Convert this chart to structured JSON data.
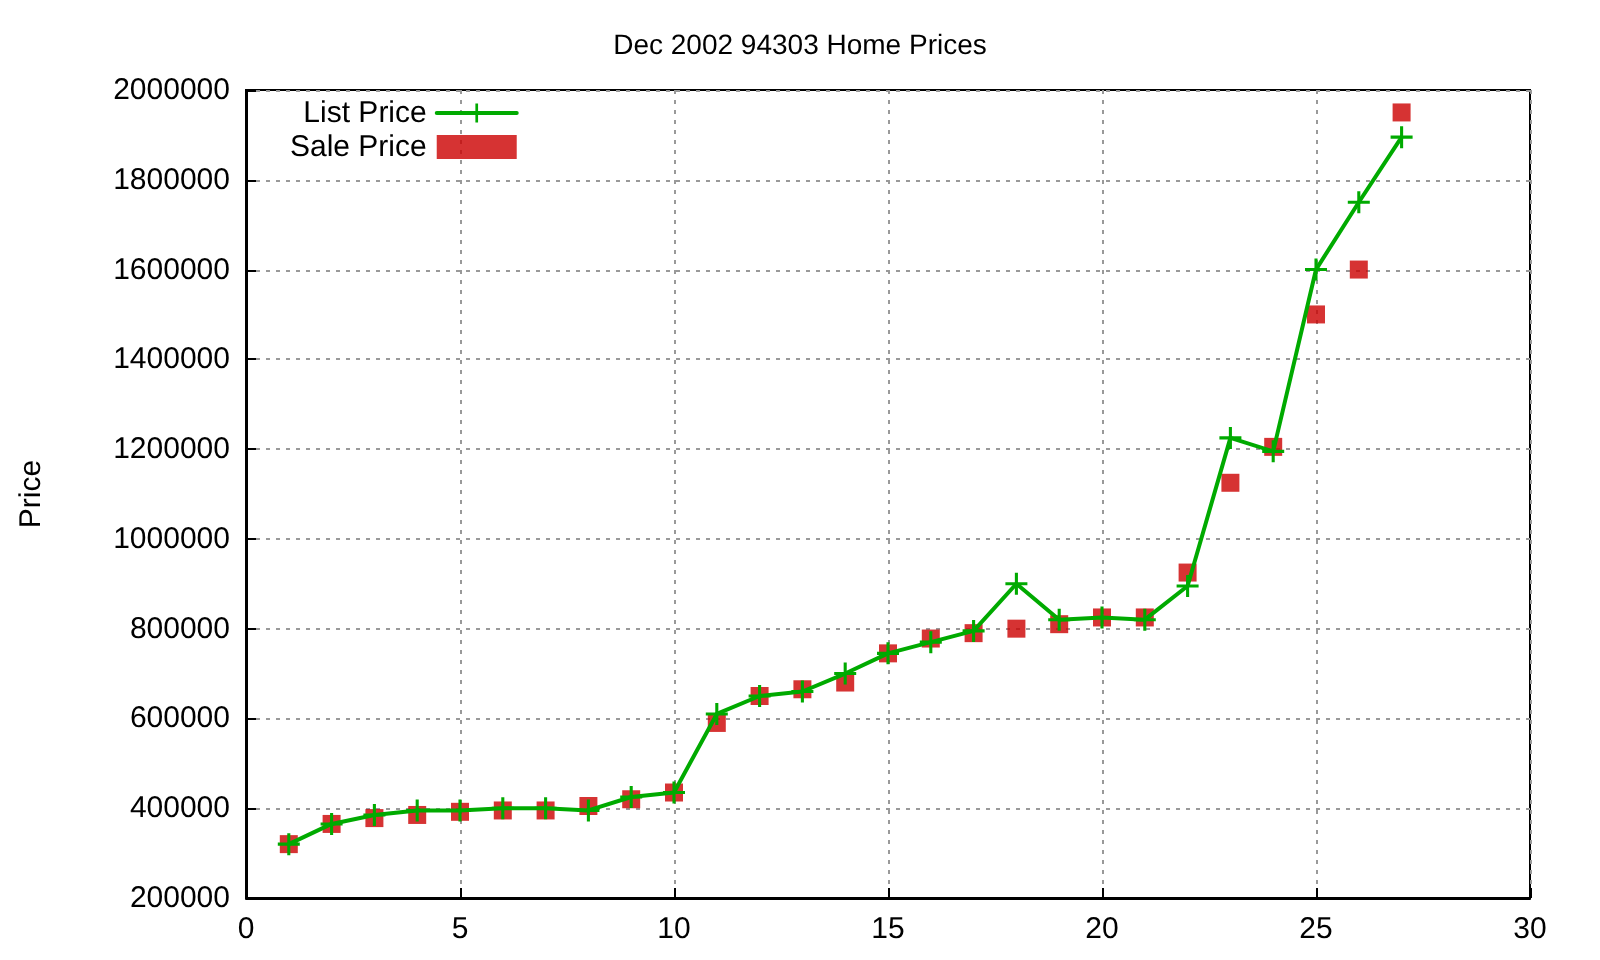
{
  "chart_data": {
    "type": "line",
    "title": "Dec 2002 94303 Home Prices",
    "ylabel": "Price",
    "x": [
      1,
      2,
      3,
      4,
      5,
      6,
      7,
      8,
      9,
      10,
      11,
      12,
      13,
      14,
      15,
      16,
      17,
      18,
      19,
      20,
      21,
      22,
      23,
      24,
      25,
      26,
      27
    ],
    "series": [
      {
        "name": "List Price",
        "marker": "cross",
        "color": "#00aa00",
        "values": [
          320000,
          365000,
          385000,
          395000,
          395000,
          400000,
          400000,
          395000,
          425000,
          435000,
          610000,
          650000,
          660000,
          700000,
          745000,
          770000,
          795000,
          900000,
          820000,
          825000,
          820000,
          895000,
          1225000,
          1195000,
          1600000,
          1750000,
          1895000
        ]
      },
      {
        "name": "Sale Price",
        "type": "scatter",
        "marker": "square",
        "color": "#cc0000",
        "values": [
          320000,
          365000,
          378000,
          385000,
          392000,
          395000,
          395000,
          405000,
          420000,
          435000,
          590000,
          650000,
          665000,
          680000,
          745000,
          778000,
          790000,
          800000,
          810000,
          825000,
          825000,
          925000,
          1125000,
          1205000,
          1500000,
          1600000,
          1950000
        ]
      }
    ],
    "xlim": [
      0,
      30
    ],
    "xticks": [
      0,
      5,
      10,
      15,
      20,
      25,
      30
    ],
    "ylim": [
      200000,
      2000000
    ],
    "yticks": [
      200000,
      400000,
      600000,
      800000,
      1000000,
      1200000,
      1400000,
      1600000,
      1800000,
      2000000
    ],
    "grid": true,
    "legend": "top left",
    "line_style": "solid"
  }
}
